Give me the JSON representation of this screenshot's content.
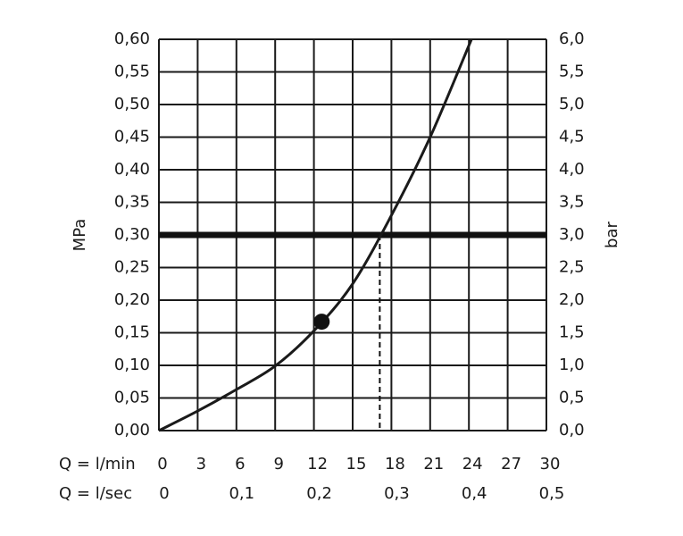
{
  "chart_data": {
    "type": "line",
    "y_label": "MPa",
    "y2_label": "bar",
    "x_label": "Q = l/min",
    "x2_label": "Q = l/sec",
    "x": [
      0,
      3,
      6,
      9,
      12,
      15,
      18,
      21,
      24.2
    ],
    "series": [
      {
        "color": "#1a1a1a",
        "values": [
          0,
          0.03,
          0.063,
          0.099,
          0.153,
          0.225,
          0.33,
          0.45,
          0.6
        ]
      }
    ],
    "xlim": [
      0,
      30
    ],
    "xticks": [
      0,
      3,
      6,
      9,
      12,
      15,
      18,
      21,
      24,
      27,
      30
    ],
    "x2lim": [
      0,
      0.5
    ],
    "x2ticks": [
      0,
      {
        "value": 0.1,
        "label": "0,1"
      },
      {
        "value": 0.2,
        "label": "0,2"
      },
      {
        "value": 0.3,
        "label": "0,3"
      },
      {
        "value": 0.4,
        "label": "0,4"
      },
      {
        "value": 0.5,
        "label": "0,5"
      }
    ],
    "ylim": [
      0,
      0.6
    ],
    "yticks": [
      {
        "value": 0,
        "label": "0,00"
      },
      {
        "value": 0.05,
        "label": "0,05"
      },
      {
        "value": 0.1,
        "label": "0,10"
      },
      {
        "value": 0.15,
        "label": "0,15"
      },
      {
        "value": 0.2,
        "label": "0,20"
      },
      {
        "value": 0.25,
        "label": "0,25"
      },
      {
        "value": 0.3,
        "label": "0,30"
      },
      {
        "value": 0.35,
        "label": "0,35"
      },
      {
        "value": 0.4,
        "label": "0,40"
      },
      {
        "value": 0.45,
        "label": "0,45"
      },
      {
        "value": 0.5,
        "label": "0,50"
      },
      {
        "value": 0.55,
        "label": "0,55"
      },
      {
        "value": 0.6,
        "label": "0,60"
      }
    ],
    "y2lim": [
      0,
      6
    ],
    "y2ticks": [
      {
        "value": 0,
        "label": "0,0"
      },
      {
        "value": 0.5,
        "label": "0,5"
      },
      {
        "value": 1,
        "label": "1,0"
      },
      {
        "value": 1.5,
        "label": "1,5"
      },
      {
        "value": 2,
        "label": "2,0"
      },
      {
        "value": 2.5,
        "label": "2,5"
      },
      {
        "value": 3,
        "label": "3,0"
      },
      {
        "value": 3.5,
        "label": "3,5"
      },
      {
        "value": 4,
        "label": "4,0"
      },
      {
        "value": 4.5,
        "label": "4,5"
      },
      {
        "value": 5,
        "label": "5,0"
      },
      {
        "value": 5.5,
        "label": "5,5"
      },
      {
        "value": 6,
        "label": "6,0"
      }
    ],
    "grid": true,
    "reference_line": {
      "y": 0.3
    },
    "drop_line": {
      "x": 17.1,
      "y": 0.3
    },
    "marker": {
      "x": 12.6,
      "y": 0.167
    }
  }
}
